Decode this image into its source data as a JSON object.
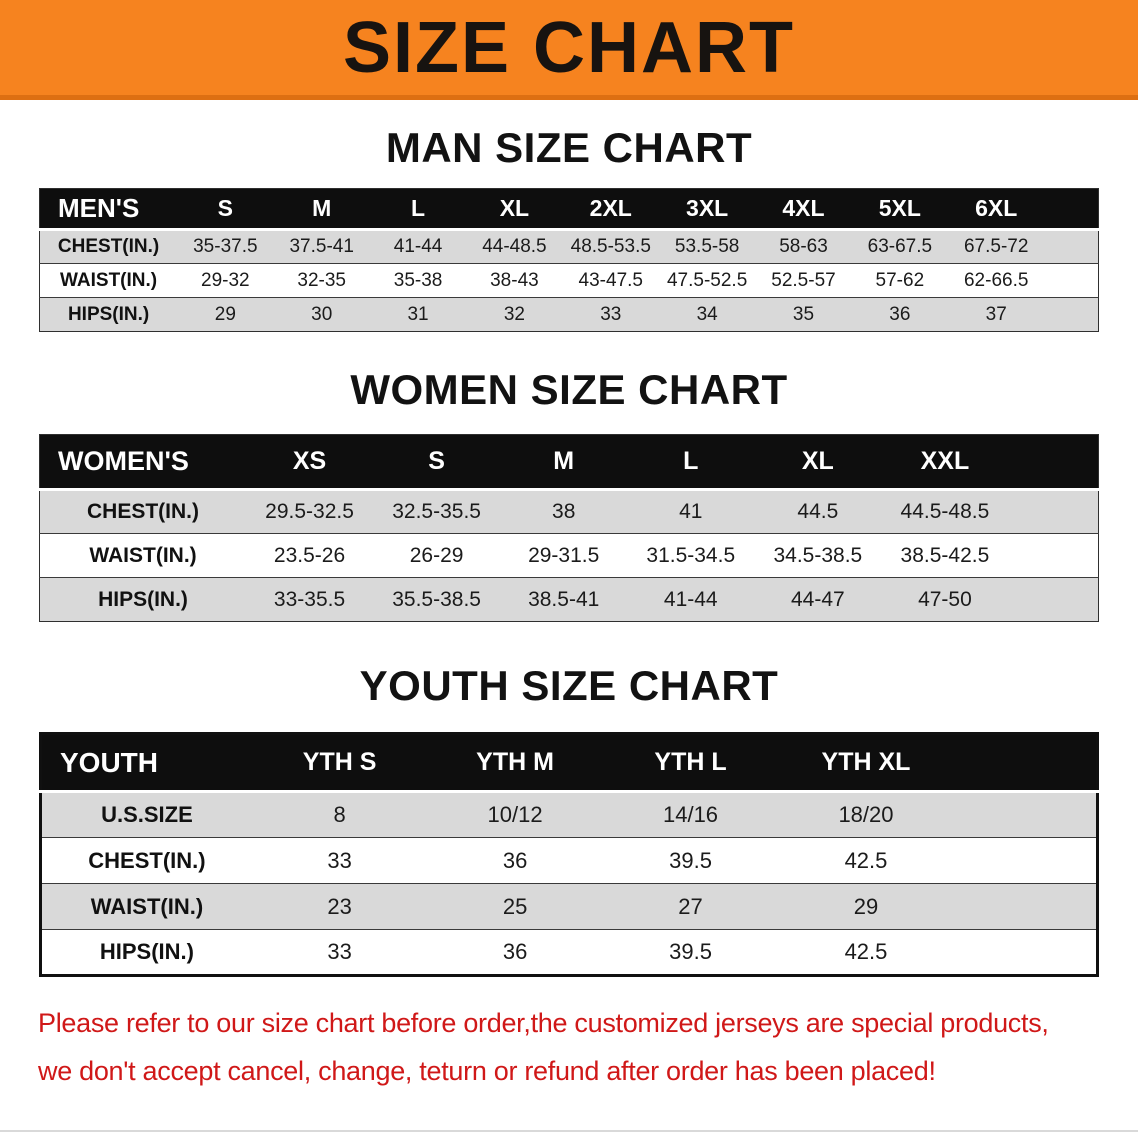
{
  "banner": {
    "title": "SIZE CHART",
    "bg_color": "#F6831F",
    "text_color": "#171310"
  },
  "sections": {
    "men": {
      "heading": "MAN SIZE CHART",
      "header": [
        "MEN'S",
        "S",
        "M",
        "L",
        "XL",
        "2XL",
        "3XL",
        "4XL",
        "5XL",
        "6XL"
      ],
      "rows": [
        {
          "label": "CHEST(IN.)",
          "values": [
            "35-37.5",
            "37.5-41",
            "41-44",
            "44-48.5",
            "48.5-53.5",
            "53.5-58",
            "58-63",
            "63-67.5",
            "67.5-72"
          ]
        },
        {
          "label": "WAIST(IN.)",
          "values": [
            "29-32",
            "32-35",
            "35-38",
            "38-43",
            "43-47.5",
            "47.5-52.5",
            "52.5-57",
            "57-62",
            "62-66.5"
          ]
        },
        {
          "label": "HIPS(IN.)",
          "values": [
            "29",
            "30",
            "31",
            "32",
            "33",
            "34",
            "35",
            "36",
            "37"
          ]
        }
      ]
    },
    "women": {
      "heading": "WOMEN SIZE CHART",
      "header": [
        "WOMEN'S",
        "XS",
        "S",
        "M",
        "L",
        "XL",
        "XXL"
      ],
      "rows": [
        {
          "label": "CHEST(IN.)",
          "values": [
            "29.5-32.5",
            "32.5-35.5",
            "38",
            "41",
            "44.5",
            "44.5-48.5"
          ]
        },
        {
          "label": "WAIST(IN.)",
          "values": [
            "23.5-26",
            "26-29",
            "29-31.5",
            "31.5-34.5",
            "34.5-38.5",
            "38.5-42.5"
          ]
        },
        {
          "label": "HIPS(IN.)",
          "values": [
            "33-35.5",
            "35.5-38.5",
            "38.5-41",
            "41-44",
            "44-47",
            "47-50"
          ]
        }
      ]
    },
    "youth": {
      "heading": "YOUTH SIZE CHART",
      "header": [
        "YOUTH",
        "YTH S",
        "YTH M",
        "YTH L",
        "YTH XL"
      ],
      "rows": [
        {
          "label": "U.S.SIZE",
          "values": [
            "8",
            "10/12",
            "14/16",
            "18/20"
          ]
        },
        {
          "label": "CHEST(IN.)",
          "values": [
            "33",
            "36",
            "39.5",
            "42.5"
          ]
        },
        {
          "label": "WAIST(IN.)",
          "values": [
            "23",
            "25",
            "27",
            "29"
          ]
        },
        {
          "label": "HIPS(IN.)",
          "values": [
            "33",
            "36",
            "39.5",
            "42.5"
          ]
        }
      ]
    }
  },
  "footer": {
    "line1": "Please refer to our size chart before order,the customized jerseys are special products,",
    "line2": "we don't accept cancel, change, teturn or refund after order has been placed!",
    "text_color": "#D01818"
  }
}
